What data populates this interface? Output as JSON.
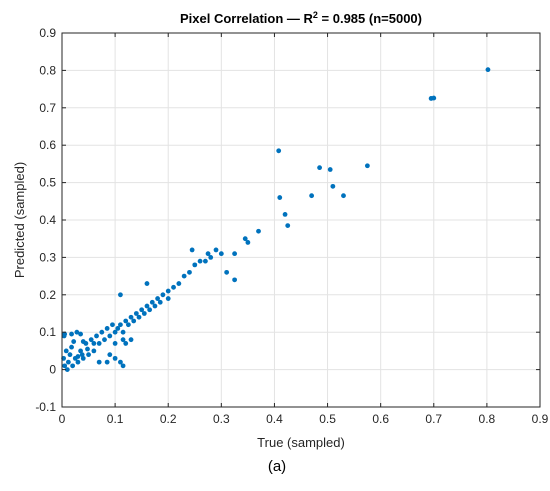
{
  "chart_data": {
    "type": "scatter",
    "title_prefix": "Pixel Correlation — R",
    "title_superscript": "2",
    "title_suffix": " = 0.985 (n=5000)",
    "xlabel": "True (sampled)",
    "ylabel": "Predicted (sampled)",
    "xlim": [
      0,
      0.9
    ],
    "ylim": [
      -0.1,
      0.9
    ],
    "xticks": [
      0,
      0.1,
      0.2,
      0.3,
      0.4,
      0.5,
      0.6,
      0.7,
      0.8,
      0.9
    ],
    "xtick_labels": [
      "0",
      "0.1",
      "0.2",
      "0.3",
      "0.4",
      "0.5",
      "0.6",
      "0.7",
      "0.8",
      "0.9"
    ],
    "yticks": [
      -0.1,
      0,
      0.1,
      0.2,
      0.3,
      0.4,
      0.5,
      0.6,
      0.7,
      0.8,
      0.9
    ],
    "ytick_labels": [
      "-0.1",
      "0",
      "0.1",
      "0.2",
      "0.3",
      "0.4",
      "0.5",
      "0.6",
      "0.7",
      "0.8",
      "0.9"
    ],
    "grid": true,
    "marker_color": "#0072BD",
    "caption": "(a)",
    "points": [
      [
        0.005,
        0.01
      ],
      [
        0.003,
        0.03
      ],
      [
        0.008,
        0.05
      ],
      [
        0.004,
        0.09
      ],
      [
        0.01,
        0.0
      ],
      [
        0.012,
        0.02
      ],
      [
        0.015,
        0.04
      ],
      [
        0.02,
        0.01
      ],
      [
        0.025,
        0.03
      ],
      [
        0.018,
        0.06
      ],
      [
        0.03,
        0.02
      ],
      [
        0.035,
        0.05
      ],
      [
        0.028,
        0.1
      ],
      [
        0.04,
        0.03
      ],
      [
        0.045,
        0.07
      ],
      [
        0.05,
        0.04
      ],
      [
        0.055,
        0.08
      ],
      [
        0.06,
        0.05
      ],
      [
        0.065,
        0.09
      ],
      [
        0.07,
        0.07
      ],
      [
        0.075,
        0.1
      ],
      [
        0.08,
        0.08
      ],
      [
        0.085,
        0.11
      ],
      [
        0.09,
        0.09
      ],
      [
        0.095,
        0.12
      ],
      [
        0.1,
        0.1
      ],
      [
        0.105,
        0.11
      ],
      [
        0.11,
        0.12
      ],
      [
        0.115,
        0.1
      ],
      [
        0.12,
        0.13
      ],
      [
        0.125,
        0.12
      ],
      [
        0.13,
        0.14
      ],
      [
        0.135,
        0.13
      ],
      [
        0.14,
        0.15
      ],
      [
        0.145,
        0.14
      ],
      [
        0.15,
        0.16
      ],
      [
        0.155,
        0.15
      ],
      [
        0.16,
        0.17
      ],
      [
        0.165,
        0.16
      ],
      [
        0.17,
        0.18
      ],
      [
        0.175,
        0.17
      ],
      [
        0.18,
        0.19
      ],
      [
        0.185,
        0.18
      ],
      [
        0.19,
        0.2
      ],
      [
        0.2,
        0.21
      ],
      [
        0.21,
        0.22
      ],
      [
        0.22,
        0.23
      ],
      [
        0.23,
        0.25
      ],
      [
        0.24,
        0.26
      ],
      [
        0.25,
        0.28
      ],
      [
        0.26,
        0.29
      ],
      [
        0.27,
        0.29
      ],
      [
        0.28,
        0.3
      ],
      [
        0.29,
        0.32
      ],
      [
        0.3,
        0.31
      ],
      [
        0.245,
        0.32
      ],
      [
        0.275,
        0.31
      ],
      [
        0.325,
        0.31
      ],
      [
        0.31,
        0.26
      ],
      [
        0.345,
        0.35
      ],
      [
        0.35,
        0.34
      ],
      [
        0.37,
        0.37
      ],
      [
        0.325,
        0.24
      ],
      [
        0.16,
        0.23
      ],
      [
        0.2,
        0.19
      ],
      [
        0.09,
        0.04
      ],
      [
        0.1,
        0.03
      ],
      [
        0.085,
        0.02
      ],
      [
        0.07,
        0.02
      ],
      [
        0.11,
        0.02
      ],
      [
        0.06,
        0.07
      ],
      [
        0.1,
        0.07
      ],
      [
        0.115,
        0.08
      ],
      [
        0.12,
        0.07
      ],
      [
        0.13,
        0.08
      ],
      [
        0.11,
        0.2
      ],
      [
        0.018,
        0.095
      ],
      [
        0.035,
        0.095
      ],
      [
        0.005,
        0.095
      ],
      [
        0.04,
        0.075
      ],
      [
        0.038,
        0.04
      ],
      [
        0.03,
        0.035
      ],
      [
        0.022,
        0.075
      ],
      [
        0.048,
        0.055
      ],
      [
        0.115,
        0.01
      ],
      [
        0.408,
        0.585
      ],
      [
        0.41,
        0.46
      ],
      [
        0.42,
        0.415
      ],
      [
        0.425,
        0.385
      ],
      [
        0.47,
        0.465
      ],
      [
        0.485,
        0.54
      ],
      [
        0.505,
        0.535
      ],
      [
        0.51,
        0.49
      ],
      [
        0.53,
        0.465
      ],
      [
        0.575,
        0.545
      ],
      [
        0.695,
        0.725
      ],
      [
        0.7,
        0.726
      ],
      [
        0.802,
        0.802
      ]
    ]
  }
}
